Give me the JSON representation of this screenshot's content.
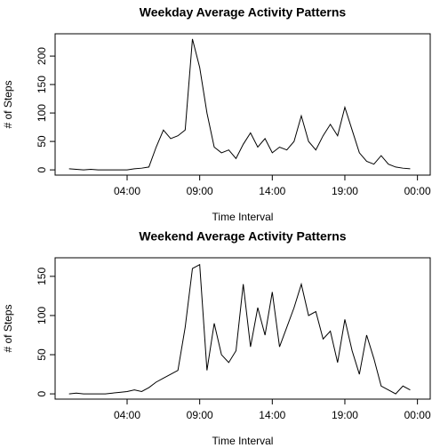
{
  "chart_data": [
    {
      "type": "line",
      "title": "Weekday Average Activity Patterns",
      "xlabel": "Time Interval",
      "ylabel": "# of Steps",
      "color": "#000000",
      "x": [
        0,
        0.5,
        1,
        1.5,
        2,
        2.5,
        3,
        3.5,
        4,
        4.5,
        5,
        5.5,
        6,
        6.5,
        7,
        7.5,
        8,
        8.5,
        9,
        9.5,
        10,
        10.5,
        11,
        11.5,
        12,
        12.5,
        13,
        13.5,
        14,
        14.5,
        15,
        15.5,
        16,
        16.5,
        17,
        17.5,
        18,
        18.5,
        19,
        19.5,
        20,
        20.5,
        21,
        21.5,
        22,
        22.5,
        23,
        23.5
      ],
      "values": [
        2,
        1,
        0,
        1,
        0,
        0,
        0,
        0,
        0,
        2,
        3,
        5,
        40,
        70,
        55,
        60,
        70,
        230,
        180,
        100,
        40,
        30,
        35,
        20,
        45,
        65,
        40,
        55,
        30,
        40,
        35,
        50,
        95,
        50,
        35,
        60,
        80,
        60,
        110,
        70,
        30,
        15,
        10,
        25,
        10,
        5,
        3,
        2
      ],
      "xlim": [
        -0.96,
        24.88
      ],
      "xticks": [
        {
          "value": 4,
          "label": "04:00"
        },
        {
          "value": 9,
          "label": "09:00"
        },
        {
          "value": 14,
          "label": "14:00"
        },
        {
          "value": 19,
          "label": "19:00"
        },
        {
          "value": 24,
          "label": "00:00"
        }
      ],
      "ylim": [
        -9.2,
        239.2
      ],
      "yticks": [
        0,
        50,
        100,
        150,
        200
      ]
    },
    {
      "type": "line",
      "title": "Weekend Average Activity Patterns",
      "xlabel": "Time Interval",
      "ylabel": "# of Steps",
      "color": "#000000",
      "x": [
        0,
        0.5,
        1,
        1.5,
        2,
        2.5,
        3,
        3.5,
        4,
        4.5,
        5,
        5.5,
        6,
        6.5,
        7,
        7.5,
        8,
        8.5,
        9,
        9.5,
        10,
        10.5,
        11,
        11.5,
        12,
        12.5,
        13,
        13.5,
        14,
        14.5,
        15,
        15.5,
        16,
        16.5,
        17,
        17.5,
        18,
        18.5,
        19,
        19.5,
        20,
        20.5,
        21,
        21.5,
        22,
        22.5,
        23,
        23.5
      ],
      "values": [
        0,
        1,
        0,
        0,
        0,
        0,
        1,
        2,
        3,
        5,
        3,
        8,
        15,
        20,
        25,
        30,
        85,
        160,
        165,
        30,
        90,
        50,
        40,
        55,
        140,
        60,
        110,
        75,
        130,
        60,
        85,
        110,
        140,
        100,
        105,
        70,
        80,
        40,
        95,
        55,
        25,
        75,
        45,
        10,
        5,
        0,
        10,
        5
      ],
      "xlim": [
        -0.96,
        24.88
      ],
      "xticks": [
        {
          "value": 4,
          "label": "04:00"
        },
        {
          "value": 9,
          "label": "09:00"
        },
        {
          "value": 14,
          "label": "14:00"
        },
        {
          "value": 19,
          "label": "19:00"
        },
        {
          "value": 24,
          "label": "00:00"
        }
      ],
      "ylim": [
        -6.7,
        173.7
      ],
      "yticks": [
        0,
        50,
        100,
        150
      ]
    }
  ]
}
